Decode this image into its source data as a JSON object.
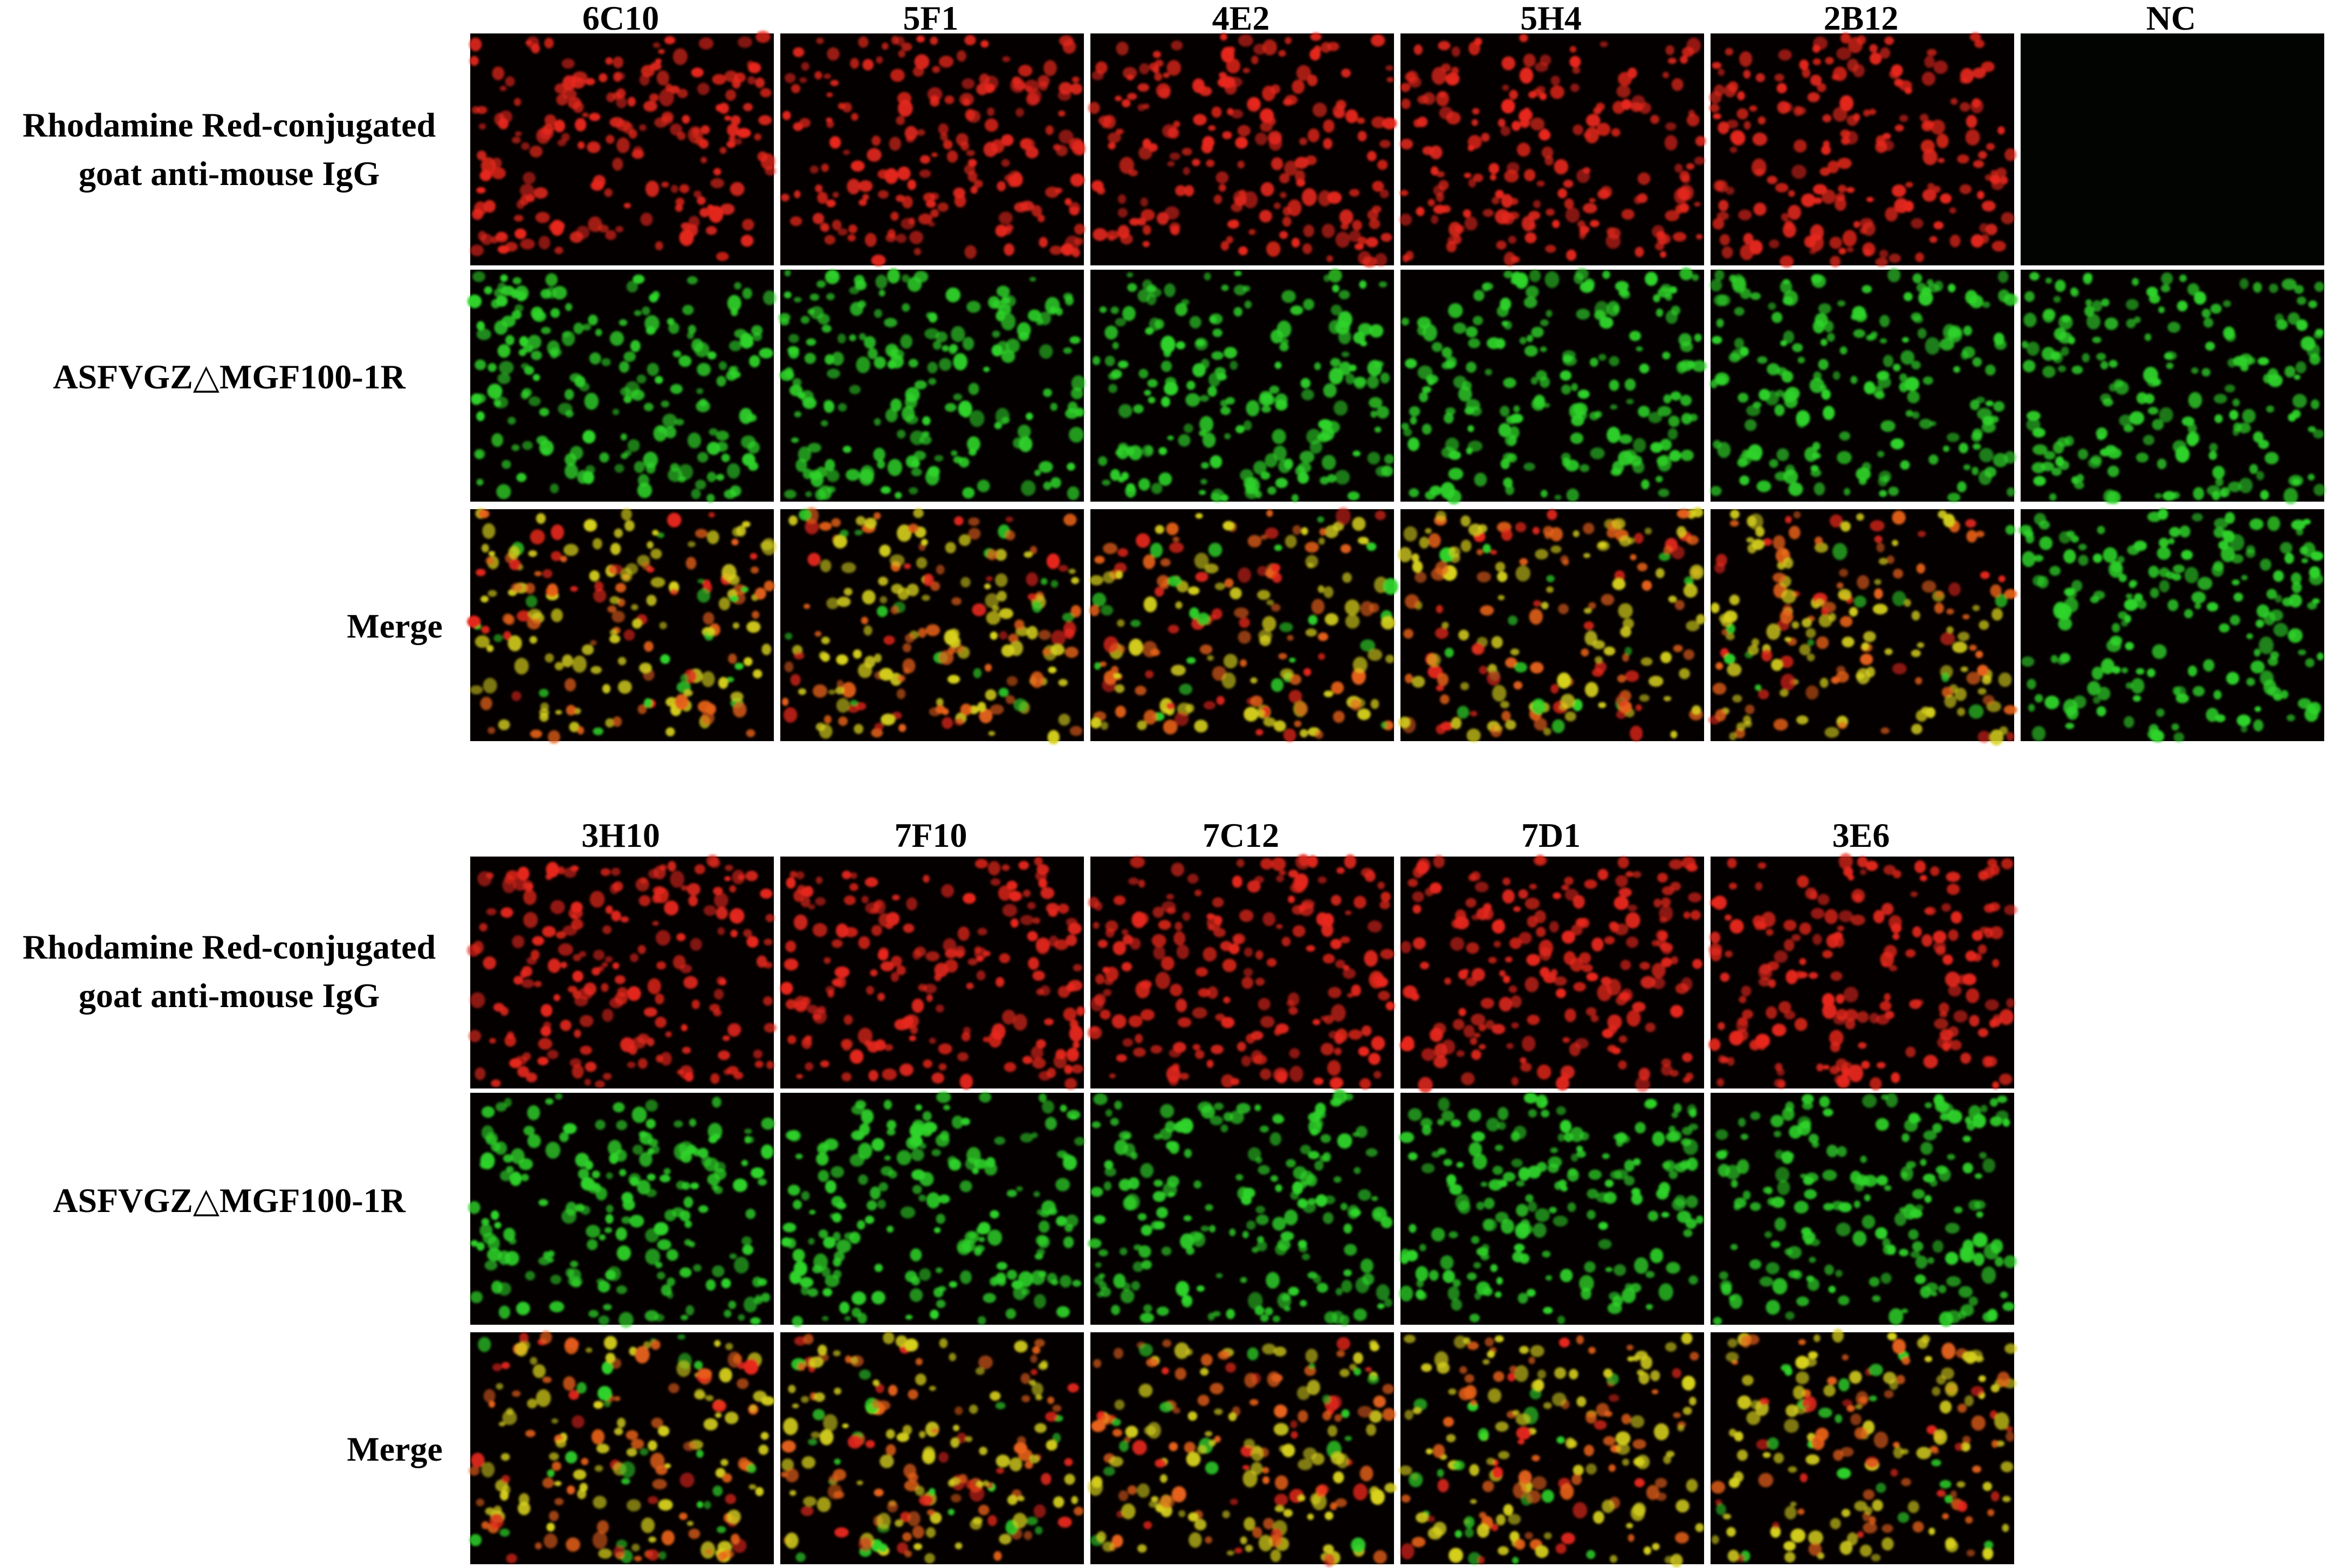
{
  "panels": [
    {
      "columns": [
        "6C10",
        "5F1",
        "4E2",
        "5H4",
        "2B12",
        "NC"
      ],
      "rows": [
        {
          "label_lines": [
            "Rhodamine Red-conjugated",
            "goat anti-mouse IgG"
          ],
          "channel": "red"
        },
        {
          "label_lines": [
            "ASFVGZ△MGF100-1R"
          ],
          "channel": "green"
        },
        {
          "label_lines": [
            "Merge"
          ],
          "channel": "merge"
        }
      ],
      "negative_control_column": "NC"
    },
    {
      "columns": [
        "3H10",
        "7F10",
        "7C12",
        "7D1",
        "3E6"
      ],
      "rows": [
        {
          "label_lines": [
            "Rhodamine Red-conjugated",
            "goat anti-mouse IgG"
          ],
          "channel": "red"
        },
        {
          "label_lines": [
            "ASFVGZ△MGF100-1R"
          ],
          "channel": "green"
        },
        {
          "label_lines": [
            "Merge"
          ],
          "channel": "merge"
        }
      ]
    }
  ],
  "colors": {
    "background": "#ffffff",
    "tile_background": "#050000",
    "red_cell": "#e8281c",
    "green_cell": "#2fd42a",
    "yellow_cell": "#d8d21e",
    "orange_cell": "#e8621a"
  }
}
